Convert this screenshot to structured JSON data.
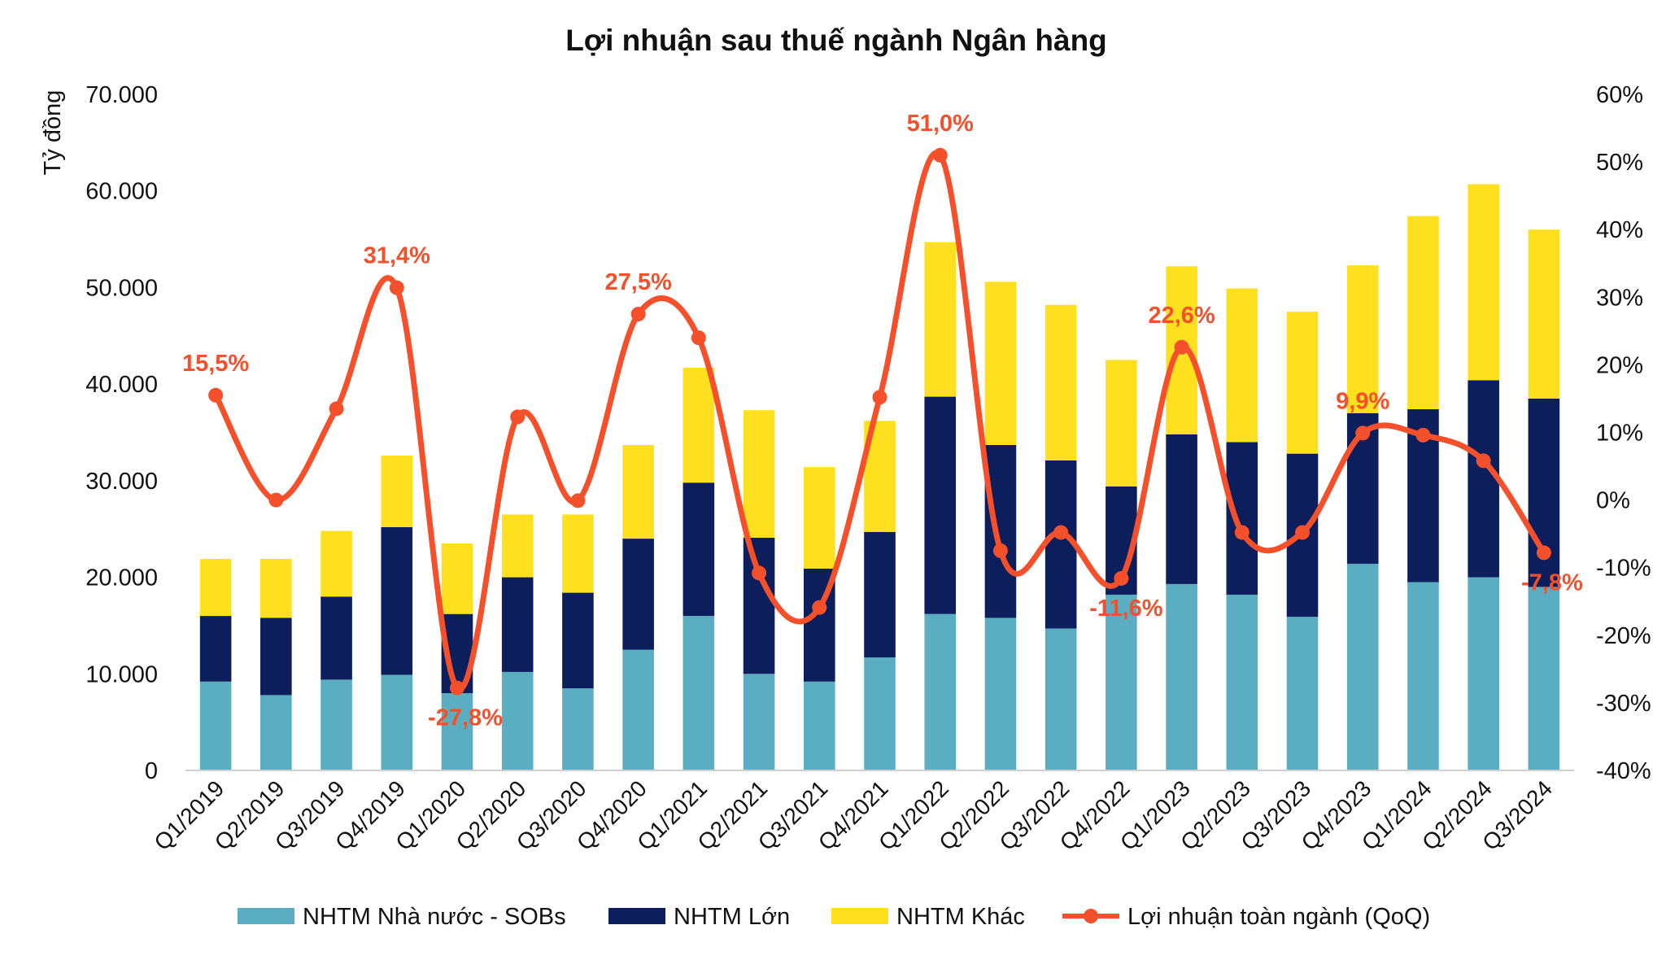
{
  "chart_data": {
    "type": "bar",
    "stacked": true,
    "title": "Lợi nhuận sau thuế ngành Ngân hàng",
    "ylabel": "Tỷ đồng",
    "ylim": [
      0,
      70000
    ],
    "y_ticks": [
      0,
      10000,
      20000,
      30000,
      40000,
      50000,
      60000,
      70000
    ],
    "y_tick_labels": [
      "0",
      "10.000",
      "20.000",
      "30.000",
      "40.000",
      "50.000",
      "60.000",
      "70.000"
    ],
    "y2lim": [
      -40,
      60
    ],
    "y2_ticks": [
      -40,
      -30,
      -20,
      -10,
      0,
      10,
      20,
      30,
      40,
      50,
      60
    ],
    "y2_tick_labels": [
      "-40%",
      "-30%",
      "-20%",
      "-10%",
      "0%",
      "10%",
      "20%",
      "30%",
      "40%",
      "50%",
      "60%"
    ],
    "categories": [
      "Q1/2019",
      "Q2/2019",
      "Q3/2019",
      "Q4/2019",
      "Q1/2020",
      "Q2/2020",
      "Q3/2020",
      "Q4/2020",
      "Q1/2021",
      "Q2/2021",
      "Q3/2021",
      "Q4/2021",
      "Q1/2022",
      "Q2/2022",
      "Q3/2022",
      "Q4/2022",
      "Q1/2023",
      "Q2/2023",
      "Q3/2023",
      "Q4/2023",
      "Q1/2024",
      "Q2/2024",
      "Q3/2024"
    ],
    "series": [
      {
        "name": "NHTM Nhà nước - SOBs",
        "kind": "bar",
        "color": "#5BAEC2",
        "values": [
          9200,
          7800,
          9400,
          9900,
          8000,
          10200,
          8500,
          12500,
          16000,
          10000,
          9200,
          11700,
          16200,
          15800,
          14700,
          18200,
          19300,
          18200,
          15900,
          21400,
          19500,
          20000,
          19000
        ]
      },
      {
        "name": "NHTM Lớn",
        "kind": "bar",
        "color": "#0C1E5C",
        "values": [
          6800,
          8000,
          8600,
          15300,
          8200,
          9800,
          9900,
          11500,
          13800,
          14100,
          11700,
          13000,
          22500,
          17900,
          17400,
          11200,
          15500,
          15800,
          16900,
          15600,
          17900,
          20400,
          19500
        ]
      },
      {
        "name": "NHTM Khác",
        "kind": "bar",
        "color": "#FFE01F",
        "values": [
          5900,
          6100,
          6800,
          7400,
          7300,
          6500,
          8100,
          9700,
          11900,
          13200,
          10500,
          11500,
          16000,
          16900,
          16100,
          13100,
          17400,
          15900,
          14700,
          15300,
          20000,
          20300,
          17500
        ]
      },
      {
        "name": "Lợi nhuận toàn ngành  (QoQ)",
        "kind": "line",
        "color": "#F4502B",
        "axis": "right",
        "values": [
          15.5,
          0.0,
          13.5,
          31.4,
          -27.8,
          12.3,
          -0.1,
          27.5,
          24.0,
          -10.8,
          -15.9,
          15.2,
          51.0,
          -7.5,
          -4.8,
          -11.6,
          22.6,
          -4.8,
          -4.8,
          9.9,
          9.6,
          5.8,
          -7.8
        ]
      }
    ],
    "data_labels": [
      {
        "index": 0,
        "text": "15,5%"
      },
      {
        "index": 3,
        "text": "31,4%"
      },
      {
        "index": 4,
        "text": "-27,8%"
      },
      {
        "index": 7,
        "text": "27,5%"
      },
      {
        "index": 12,
        "text": "51,0%"
      },
      {
        "index": 15,
        "text": "-11,6%"
      },
      {
        "index": 16,
        "text": "22,6%"
      },
      {
        "index": 19,
        "text": "9,9%"
      },
      {
        "index": 22,
        "text": "-7,8%"
      }
    ],
    "legend_position": "bottom"
  }
}
